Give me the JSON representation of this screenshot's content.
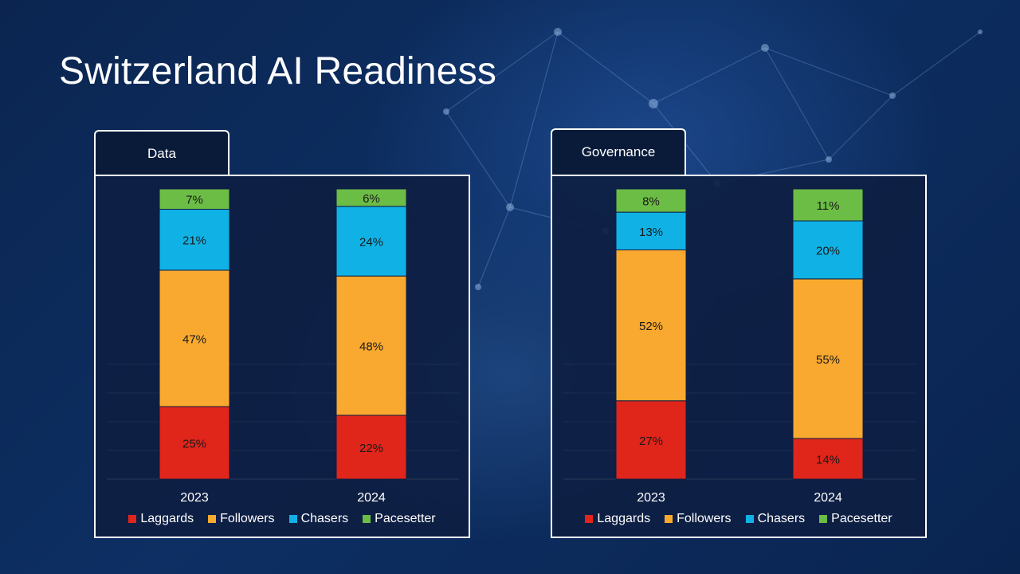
{
  "title": "Switzerland AI Readiness",
  "colors": {
    "Laggards": "#e0251b",
    "Followers": "#f9a92f",
    "Chasers": "#10b2e6",
    "Pacesetter": "#6cbd45"
  },
  "chart_data": [
    {
      "type": "bar",
      "stacked": true,
      "title": "Data",
      "categories": [
        "2023",
        "2024"
      ],
      "series": [
        {
          "name": "Laggards",
          "values": [
            25,
            22
          ]
        },
        {
          "name": "Followers",
          "values": [
            47,
            48
          ]
        },
        {
          "name": "Chasers",
          "values": [
            21,
            24
          ]
        },
        {
          "name": "Pacesetter",
          "values": [
            7,
            6
          ]
        }
      ],
      "labels": [
        [
          "25%",
          "47%",
          "21%",
          "7%"
        ],
        [
          "22%",
          "48%",
          "24%",
          "6%"
        ]
      ],
      "ylim": [
        0,
        100
      ],
      "legend": "bottom"
    },
    {
      "type": "bar",
      "stacked": true,
      "title": "Governance",
      "categories": [
        "2023",
        "2024"
      ],
      "series": [
        {
          "name": "Laggards",
          "values": [
            27,
            14
          ]
        },
        {
          "name": "Followers",
          "values": [
            52,
            55
          ]
        },
        {
          "name": "Chasers",
          "values": [
            13,
            20
          ]
        },
        {
          "name": "Pacesetter",
          "values": [
            8,
            11
          ]
        }
      ],
      "labels": [
        [
          "27%",
          "52%",
          "13%",
          "8%"
        ],
        [
          "14%",
          "55%",
          "20%",
          "11%"
        ]
      ],
      "ylim": [
        0,
        100
      ],
      "legend": "bottom"
    }
  ]
}
